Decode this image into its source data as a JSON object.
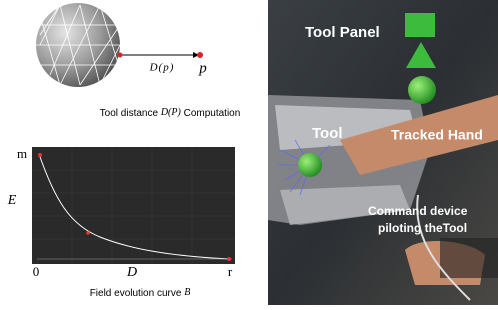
{
  "diagram": {
    "distance_label": "D(p)",
    "point_label": "p",
    "caption": [
      "Tool  distance",
      "D(P)",
      "Computation"
    ]
  },
  "plot": {
    "y_max_label": "m",
    "y_label": "E",
    "x_min_label": "0",
    "x_label": "D",
    "x_max_label": "r",
    "caption": [
      "Field evolution curve",
      "B"
    ]
  },
  "photo": {
    "labels": [
      "Tool Panel",
      "Tool",
      "Tracked Hand",
      "Command device",
      "piloting theTool"
    ]
  }
}
